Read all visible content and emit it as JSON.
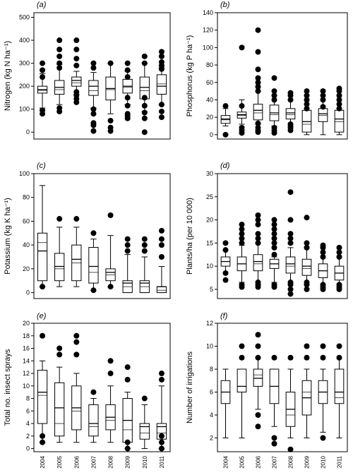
{
  "chart_data": [
    {
      "type": "box",
      "panel_label": "(a)",
      "ylabel": "Nitrogen (kg N ha⁻¹)",
      "ylim": [
        -30,
        520
      ],
      "yticks": [
        0,
        100,
        200,
        300,
        400,
        500
      ],
      "categories": [
        "2004",
        "2005",
        "2006",
        "2007",
        "2008",
        "2009",
        "2010",
        "2011"
      ],
      "boxes": [
        {
          "whisker_low": 95,
          "q1": 170,
          "median": 182,
          "mean": 185,
          "q3": 200,
          "whisker_high": 265,
          "cap_low": 105,
          "cap_high": 255,
          "outliers": [
            80,
            95,
            240,
            270,
            300
          ]
        },
        {
          "whisker_low": 120,
          "q1": 165,
          "median": 185,
          "mean": 195,
          "q3": 225,
          "whisker_high": 300,
          "cap_low": 120,
          "cap_high": 295,
          "outliers": [
            90,
            105,
            280,
            300,
            330,
            360,
            400
          ]
        },
        {
          "whisker_low": 160,
          "q1": 200,
          "median": 215,
          "mean": 225,
          "q3": 240,
          "whisker_high": 265,
          "cap_low": 165,
          "cap_high": 265,
          "outliers": [
            130,
            145,
            160,
            175,
            290,
            320,
            360,
            400
          ]
        },
        {
          "whisker_low": 90,
          "q1": 160,
          "median": 180,
          "mean": 200,
          "q3": 225,
          "whisker_high": 260,
          "cap_low": 105,
          "cap_high": 260,
          "outliers": [
            5,
            30,
            40,
            80,
            100,
            280,
            300
          ]
        },
        {
          "whisker_low": 80,
          "q1": 140,
          "median": 185,
          "mean": 190,
          "q3": 240,
          "whisker_high": 300,
          "cap_low": 80,
          "cap_high": 300,
          "outliers": [
            5,
            20,
            50,
            300
          ]
        },
        {
          "whisker_low": 115,
          "q1": 170,
          "median": 195,
          "mean": 200,
          "q3": 230,
          "whisker_high": 265,
          "cap_low": 120,
          "cap_high": 265,
          "outliers": [
            60,
            70,
            80,
            115,
            150,
            240,
            270,
            300
          ]
        },
        {
          "whisker_low": 85,
          "q1": 145,
          "median": 180,
          "mean": 195,
          "q3": 240,
          "whisker_high": 300,
          "cap_low": 90,
          "cap_high": 300,
          "outliers": [
            0,
            60,
            85,
            115,
            150,
            300,
            330
          ]
        },
        {
          "whisker_low": 130,
          "q1": 165,
          "median": 210,
          "mean": 200,
          "q3": 250,
          "whisker_high": 280,
          "cap_low": 120,
          "cap_high": 280,
          "outliers": [
            65,
            90,
            120,
            275,
            290,
            305,
            330,
            350
          ]
        }
      ]
    },
    {
      "type": "box",
      "panel_label": "(b)",
      "ylabel": "Phosphorus (kg P ha⁻¹)",
      "ylim": [
        -5,
        140
      ],
      "yticks": [
        0,
        20,
        40,
        60,
        80,
        100,
        120,
        140
      ],
      "categories": [
        "2004",
        "2005",
        "2006",
        "2007",
        "2008",
        "2009",
        "2010",
        "2011"
      ],
      "boxes": [
        {
          "whisker_low": 5,
          "q1": 13,
          "median": 17,
          "mean": 18,
          "q3": 22,
          "whisker_high": 30,
          "cap_low": 10,
          "cap_high": 30,
          "outliers": [
            0,
            33
          ]
        },
        {
          "whisker_low": 5,
          "q1": 19,
          "median": 22,
          "mean": 23,
          "q3": 26,
          "whisker_high": 40,
          "cap_low": 12,
          "cap_high": 40,
          "outliers": [
            2,
            5,
            8,
            33,
            100
          ]
        },
        {
          "whisker_low": 10,
          "q1": 17,
          "median": 25,
          "mean": 28,
          "q3": 35,
          "whisker_high": 50,
          "cap_low": 12,
          "cap_high": 50,
          "outliers": [
            3,
            5,
            8,
            13,
            50,
            55,
            60,
            65,
            75,
            95,
            120
          ]
        },
        {
          "whisker_low": 8,
          "q1": 16,
          "median": 23,
          "mean": 25,
          "q3": 34,
          "whisker_high": 45,
          "cap_low": 10,
          "cap_high": 45,
          "outliers": [
            2,
            5,
            8,
            40,
            45,
            50,
            65
          ]
        },
        {
          "whisker_low": 10,
          "q1": 18,
          "median": 23,
          "mean": 25,
          "q3": 30,
          "whisker_high": 40,
          "cap_low": 10,
          "cap_high": 40,
          "outliers": [
            5,
            8,
            12,
            40,
            45,
            48
          ]
        },
        {
          "whisker_low": 0,
          "q1": 3,
          "median": 12,
          "mean": 15,
          "q3": 28,
          "whisker_high": 45,
          "cap_low": 0,
          "cap_high": 45,
          "outliers": [
            30,
            35,
            40,
            45,
            50
          ]
        },
        {
          "whisker_low": 0,
          "q1": 15,
          "median": 22,
          "mean": 24,
          "q3": 30,
          "whisker_high": 45,
          "cap_low": 0,
          "cap_high": 45,
          "outliers": [
            32,
            40,
            45,
            50
          ]
        },
        {
          "whisker_low": 0,
          "q1": 3,
          "median": 15,
          "mean": 18,
          "q3": 28,
          "whisker_high": 45,
          "cap_low": 0,
          "cap_high": 45,
          "outliers": [
            30,
            35,
            40,
            45,
            50,
            53
          ]
        }
      ]
    },
    {
      "type": "box",
      "panel_label": "(c)",
      "ylabel": "Potassium (kg K ha⁻¹)",
      "ylim": [
        -5,
        100
      ],
      "yticks": [
        0,
        20,
        40,
        60,
        80,
        100
      ],
      "categories": [
        "2004",
        "2005",
        "2006",
        "2007",
        "2008",
        "2009",
        "2010",
        "2011"
      ],
      "boxes": [
        {
          "whisker_low": 5,
          "q1": 10,
          "median": 42,
          "mean": 35,
          "q3": 50,
          "whisker_high": 90,
          "cap_low": 5,
          "cap_high": 90,
          "outliers": [
            5
          ]
        },
        {
          "whisker_low": 5,
          "q1": 10,
          "median": 20,
          "mean": 22,
          "q3": 33,
          "whisker_high": 55,
          "cap_low": 5,
          "cap_high": 55,
          "outliers": [
            62
          ]
        },
        {
          "whisker_low": 5,
          "q1": 10,
          "median": 25,
          "mean": 28,
          "q3": 40,
          "whisker_high": 55,
          "cap_low": 5,
          "cap_high": 55,
          "outliers": [
            62
          ]
        },
        {
          "whisker_low": 2,
          "q1": 8,
          "median": 17,
          "mean": 22,
          "q3": 38,
          "whisker_high": 45,
          "cap_low": 2,
          "cap_high": 45,
          "outliers": [
            2,
            50
          ]
        },
        {
          "whisker_low": 5,
          "q1": 10,
          "median": 15,
          "mean": 17,
          "q3": 20,
          "whisker_high": 48,
          "cap_low": 5,
          "cap_high": 48,
          "outliers": [
            5,
            65
          ]
        },
        {
          "whisker_low": 0,
          "q1": 0,
          "median": 5,
          "mean": 8,
          "q3": 10,
          "whisker_high": 32,
          "cap_low": 0,
          "cap_high": 32,
          "outliers": [
            35,
            40,
            45
          ]
        },
        {
          "whisker_low": 0,
          "q1": 0,
          "median": 5,
          "mean": 8,
          "q3": 10,
          "whisker_high": 30,
          "cap_low": 0,
          "cap_high": 30,
          "outliers": [
            35,
            40,
            45
          ]
        },
        {
          "whisker_low": 0,
          "q1": 0,
          "median": 2,
          "mean": 5,
          "q3": 5,
          "whisker_high": 22,
          "cap_low": 0,
          "cap_high": 22,
          "outliers": [
            30,
            40,
            45,
            52
          ]
        }
      ]
    },
    {
      "type": "box",
      "panel_label": "(d)",
      "ylabel": "Plants/ha (per 10 000)",
      "ylim": [
        3,
        30
      ],
      "yticks": [
        5,
        10,
        15,
        20,
        25,
        30
      ],
      "categories": [
        "2004",
        "2005",
        "2006",
        "2007",
        "2008",
        "2009",
        "2010",
        "2011"
      ],
      "boxes": [
        {
          "whisker_low": 8.5,
          "q1": 10,
          "median": 11,
          "mean": 11,
          "q3": 12,
          "whisker_high": 13.5,
          "cap_low": 8.5,
          "cap_high": 13.5,
          "outliers": [
            7,
            8.5,
            13.5,
            15
          ]
        },
        {
          "whisker_low": 6.5,
          "q1": 9,
          "median": 10.5,
          "mean": 10.5,
          "q3": 12,
          "whisker_high": 14.5,
          "cap_low": 6.5,
          "cap_high": 14.5,
          "outliers": [
            5.5,
            6,
            15,
            16,
            17,
            18,
            19
          ]
        },
        {
          "whisker_low": 6.5,
          "q1": 9,
          "median": 10.5,
          "mean": 11,
          "q3": 12.5,
          "whisker_high": 15,
          "cap_low": 6.5,
          "cap_high": 15,
          "outliers": [
            5.5,
            6,
            6.5,
            15,
            16,
            17,
            19,
            20,
            21
          ]
        },
        {
          "whisker_low": 6.5,
          "q1": 9.5,
          "median": 10.5,
          "mean": 10.5,
          "q3": 11.5,
          "whisker_high": 12,
          "cap_low": 6.5,
          "cap_high": 12,
          "outliers": [
            5.5,
            6,
            12.5,
            14,
            15,
            16,
            17,
            18,
            19,
            20
          ]
        },
        {
          "whisker_low": 6.5,
          "q1": 8.5,
          "median": 10,
          "mean": 10.5,
          "q3": 12,
          "whisker_high": 14,
          "cap_low": 6.5,
          "cap_high": 14,
          "outliers": [
            4,
            5,
            6,
            6.5,
            15,
            16,
            17,
            20,
            26
          ]
        },
        {
          "whisker_low": 6,
          "q1": 8,
          "median": 9.5,
          "mean": 10,
          "q3": 11.5,
          "whisker_high": 14,
          "cap_low": 6,
          "cap_high": 14,
          "outliers": [
            5,
            6,
            6.5,
            14,
            15,
            20.5
          ]
        },
        {
          "whisker_low": 6,
          "q1": 7.5,
          "median": 9,
          "mean": 9,
          "q3": 10.5,
          "whisker_high": 14,
          "cap_low": 6,
          "cap_high": 14,
          "outliers": [
            5,
            5.5,
            6,
            12,
            13,
            14,
            14.5
          ]
        },
        {
          "whisker_low": 6,
          "q1": 7,
          "median": 8.5,
          "mean": 8.5,
          "q3": 10,
          "whisker_high": 12,
          "cap_low": 6,
          "cap_high": 12,
          "outliers": [
            5,
            5.5,
            6,
            12,
            13,
            14
          ]
        }
      ]
    },
    {
      "type": "box",
      "panel_label": "(e)",
      "ylabel": "Total no. insect sprays",
      "ylim": [
        -0.5,
        20
      ],
      "yticks": [
        0,
        2,
        4,
        6,
        8,
        10,
        12,
        14,
        16,
        18,
        20
      ],
      "categories": [
        "2004",
        "2005",
        "2006",
        "2007",
        "2008",
        "2009",
        "2010",
        "2011"
      ],
      "boxes": [
        {
          "whisker_low": 1,
          "q1": 4,
          "median": 8.5,
          "mean": 9,
          "q3": 12.5,
          "whisker_high": 14,
          "cap_low": 1,
          "cap_high": 14,
          "outliers": [
            1,
            2,
            18
          ]
        },
        {
          "whisker_low": 1,
          "q1": 2,
          "median": 4,
          "mean": 6.5,
          "q3": 10.5,
          "whisker_high": 13,
          "cap_low": 1,
          "cap_high": 13,
          "outliers": [
            15,
            16
          ]
        },
        {
          "whisker_low": 1,
          "q1": 3,
          "median": 6,
          "mean": 6.5,
          "q3": 10,
          "whisker_high": 12,
          "cap_low": 1,
          "cap_high": 12,
          "outliers": [
            15,
            17,
            18
          ]
        },
        {
          "whisker_low": 1,
          "q1": 2,
          "median": 3.5,
          "mean": 4,
          "q3": 7,
          "whisker_high": 8,
          "cap_low": 1,
          "cap_high": 8,
          "outliers": [
            9
          ]
        },
        {
          "whisker_low": 1,
          "q1": 3,
          "median": 4.5,
          "mean": 5,
          "q3": 7,
          "whisker_high": 10,
          "cap_low": 1,
          "cap_high": 10,
          "outliers": [
            12,
            14
          ]
        },
        {
          "whisker_low": 0,
          "q1": 1,
          "median": 3,
          "mean": 4.5,
          "q3": 8,
          "whisker_high": 9,
          "cap_low": 0,
          "cap_high": 9,
          "outliers": [
            0,
            1,
            11,
            13
          ]
        },
        {
          "whisker_low": 0,
          "q1": 1.5,
          "median": 2.5,
          "mean": 3.5,
          "q3": 4,
          "whisker_high": 7,
          "cap_low": 0,
          "cap_high": 7,
          "outliers": [
            8
          ]
        },
        {
          "whisker_low": 0,
          "q1": 1.5,
          "median": 2.5,
          "mean": 3.5,
          "q3": 4,
          "whisker_high": 10,
          "cap_low": 0,
          "cap_high": 10,
          "outliers": [
            0,
            1,
            2,
            11,
            12
          ]
        }
      ]
    },
    {
      "type": "box",
      "panel_label": "(f)",
      "ylabel": "Number of irrigations",
      "ylim": [
        0.8,
        12
      ],
      "yticks": [
        2,
        4,
        6,
        8,
        10,
        12
      ],
      "categories": [
        "2004",
        "2005",
        "2006",
        "2007",
        "2008",
        "2009",
        "2010",
        "2011"
      ],
      "boxes": [
        {
          "whisker_low": 2,
          "q1": 5,
          "median": 6,
          "mean": 6,
          "q3": 7,
          "whisker_high": 8,
          "cap_low": 2,
          "cap_high": 8,
          "outliers": []
        },
        {
          "whisker_low": 2,
          "q1": 6,
          "median": 6.5,
          "mean": 6.5,
          "q3": 8,
          "whisker_high": 8,
          "cap_low": 2,
          "cap_high": 8,
          "outliers": [
            9,
            10
          ]
        },
        {
          "whisker_low": 4.5,
          "q1": 6.5,
          "median": 7.5,
          "mean": 7.2,
          "q3": 8,
          "whisker_high": 9,
          "cap_low": 4.5,
          "cap_high": 9,
          "outliers": [
            3,
            4,
            9,
            10,
            11
          ]
        },
        {
          "whisker_low": 3,
          "q1": 5,
          "median": 6.5,
          "mean": 6.5,
          "q3": 8,
          "whisker_high": 8,
          "cap_low": 3,
          "cap_high": 8,
          "outliers": [
            1.5,
            2,
            9
          ]
        },
        {
          "whisker_low": 2,
          "q1": 3,
          "median": 4,
          "mean": 4.5,
          "q3": 6,
          "whisker_high": 8,
          "cap_low": 2,
          "cap_high": 8,
          "outliers": [
            1,
            9
          ]
        },
        {
          "whisker_low": 2,
          "q1": 4,
          "median": 6,
          "mean": 5.5,
          "q3": 7,
          "whisker_high": 8,
          "cap_low": 2,
          "cap_high": 8,
          "outliers": [
            9,
            10
          ]
        },
        {
          "whisker_low": 2.5,
          "q1": 5,
          "median": 6,
          "mean": 6,
          "q3": 7,
          "whisker_high": 8,
          "cap_low": 2.5,
          "cap_high": 8,
          "outliers": [
            2,
            9,
            10
          ]
        },
        {
          "whisker_low": 2,
          "q1": 5,
          "median": 5.5,
          "mean": 6,
          "q3": 8,
          "whisker_high": 9,
          "cap_low": 2,
          "cap_high": 9,
          "outliers": [
            9,
            10
          ]
        }
      ]
    }
  ]
}
